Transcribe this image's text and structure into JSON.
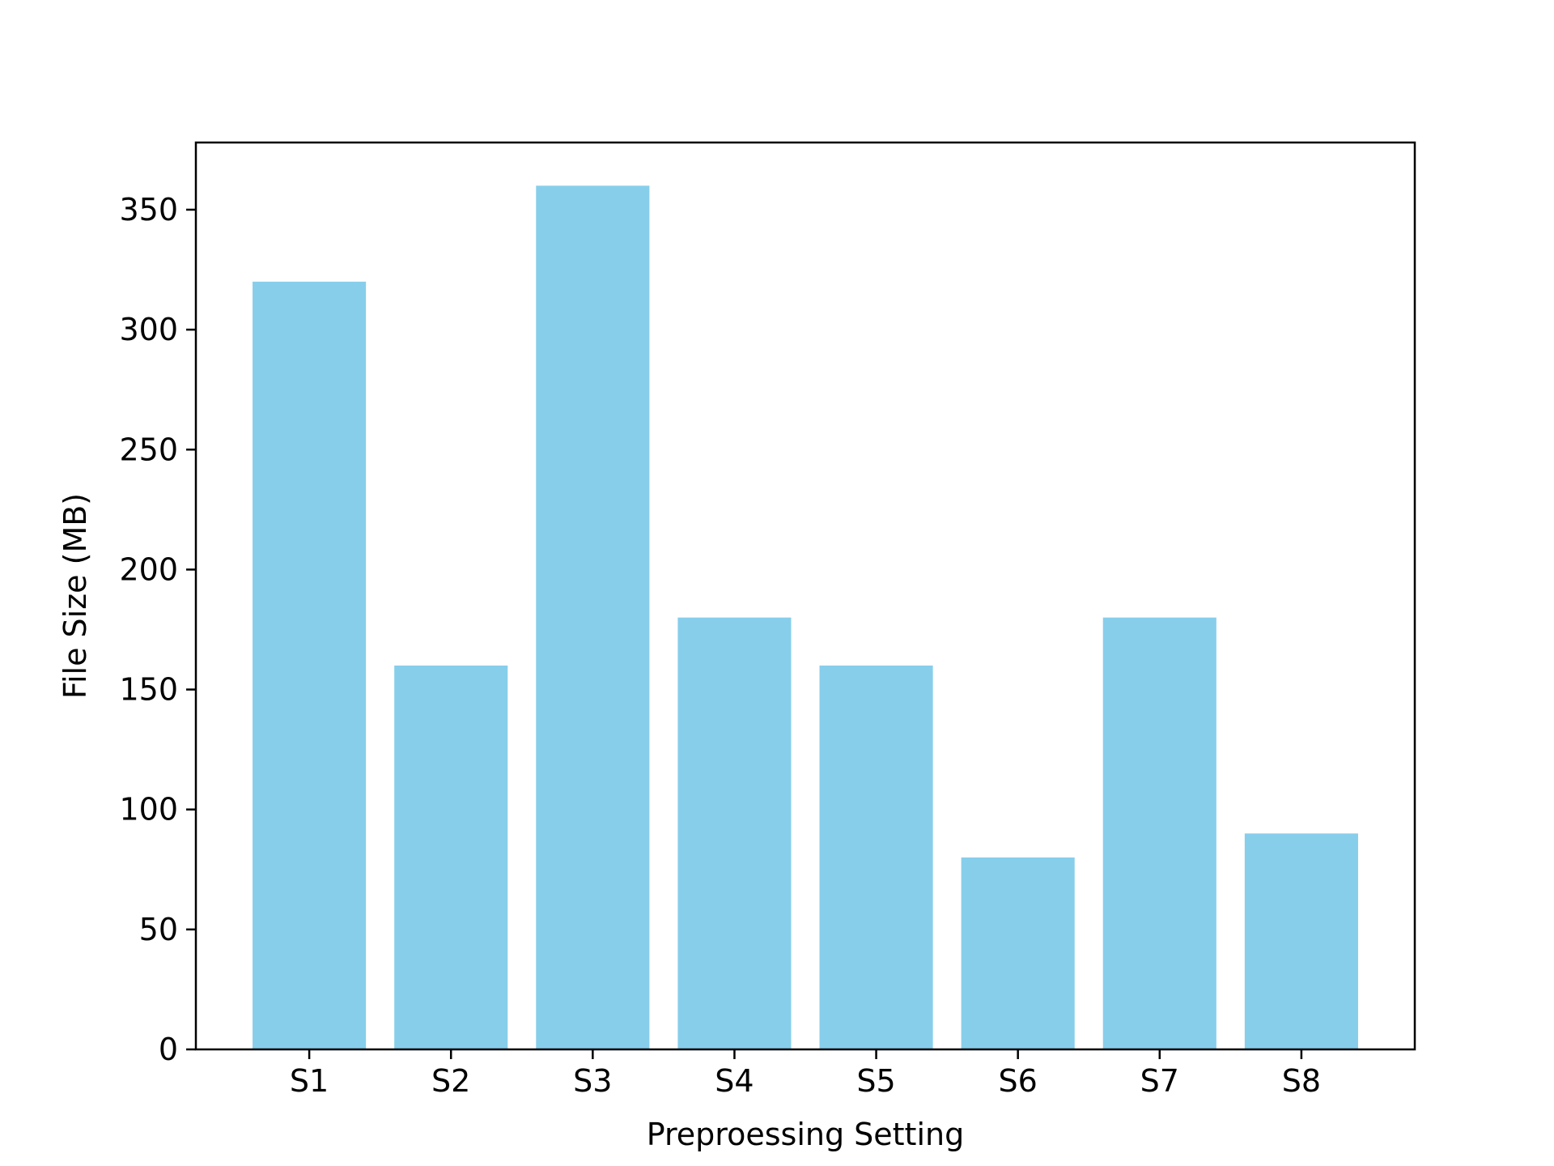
{
  "chart_data": {
    "type": "bar",
    "title": "",
    "xlabel": "Preproessing Setting",
    "ylabel": "File Size (MB)",
    "categories": [
      "S1",
      "S2",
      "S3",
      "S4",
      "S5",
      "S6",
      "S7",
      "S8"
    ],
    "values": [
      320,
      160,
      360,
      180,
      160,
      80,
      180,
      90
    ],
    "ylim": [
      0,
      378
    ],
    "yticks": [
      0,
      50,
      100,
      150,
      200,
      250,
      300,
      350
    ],
    "grid": false,
    "legend": "none",
    "colors": {
      "bar": "#87CEEB",
      "axis": "#000000",
      "background": "#ffffff"
    }
  }
}
